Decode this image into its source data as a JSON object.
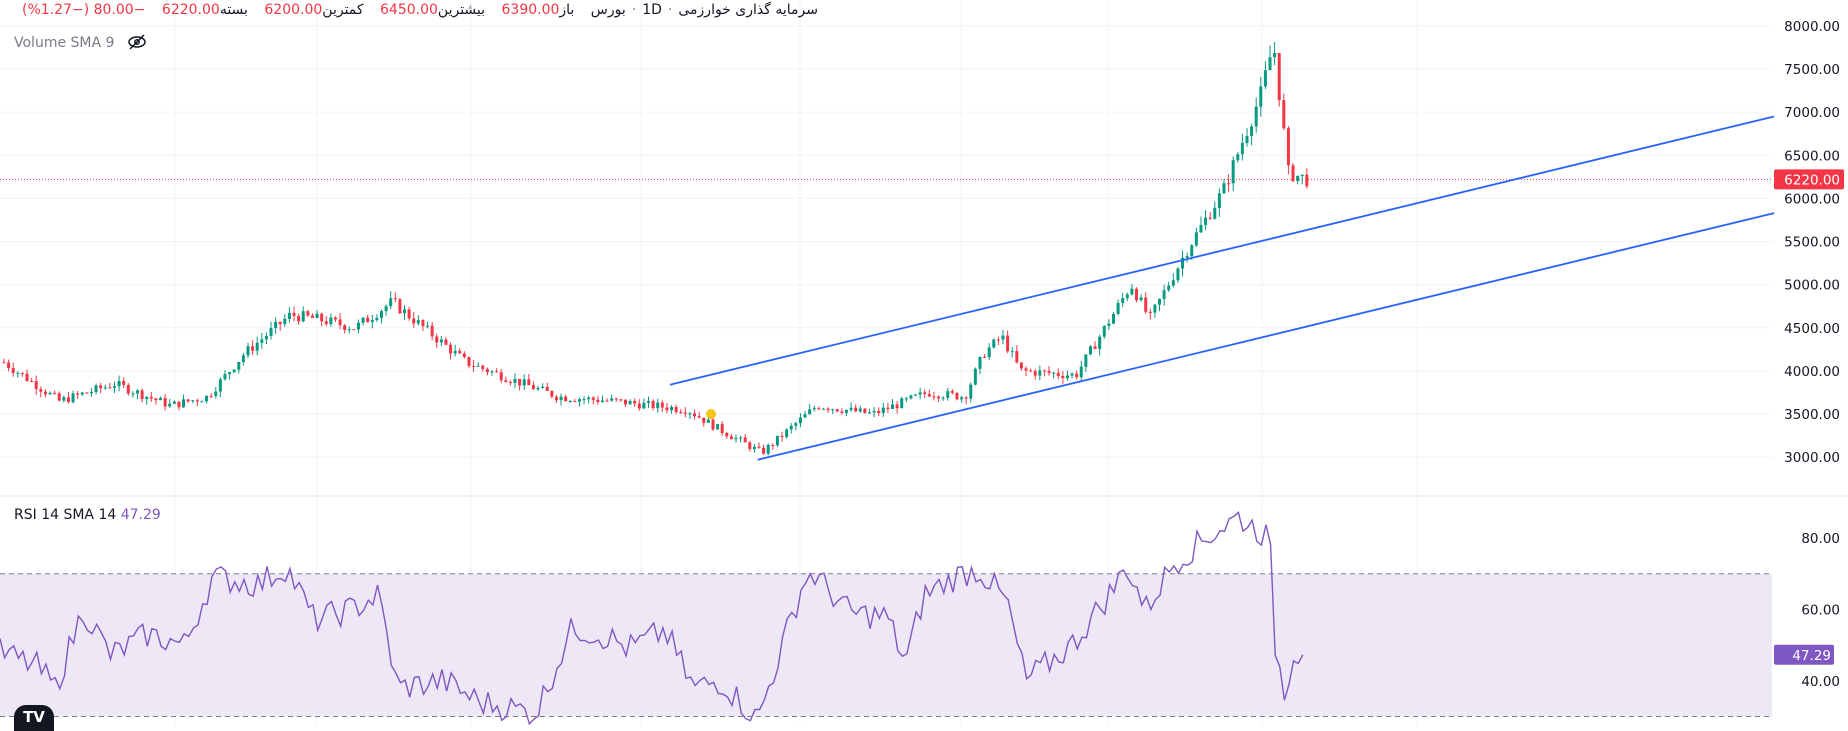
{
  "header": {
    "title": "سرمایه گذاری خوارزمی",
    "interval": "1D",
    "exchange": "بورس",
    "open_label": "باز",
    "open_value": "6390.00",
    "high_label": "بیشترین",
    "high_value": "6450.00",
    "low_label": "کمترین",
    "low_value": "6200.00",
    "close_label": "بسته",
    "close_value": "6220.00",
    "change": "−80.00 (−1.27%)"
  },
  "volume_legend": {
    "label": "Volume SMA 9",
    "icon": "eye-off-icon"
  },
  "rsi_legend": {
    "label": "RSI 14 SMA 14",
    "value": "47.29"
  },
  "colors": {
    "up": "#089981",
    "down": "#f23645",
    "trend": "#2962ff",
    "rsi": "#7e57c2",
    "band": "#ede7f6"
  },
  "chart_data": [
    {
      "type": "candlestick",
      "y_tick_labels": [
        "8000.00",
        "7500.00",
        "7000.00",
        "6500.00",
        "6000.00",
        "5500.00",
        "5000.00",
        "4500.00",
        "4000.00",
        "3500.00",
        "3000.00"
      ],
      "ylim": [
        2550,
        8300
      ],
      "last_price": 6220,
      "last_price_label": "6220.00",
      "trend_lines": [
        {
          "x": [
            0.3625,
            0.96
          ],
          "y": [
            3840,
            6950
          ]
        },
        {
          "x": [
            0.41,
            0.96
          ],
          "y": [
            2970,
            5830
          ]
        }
      ],
      "anchors": [
        [
          0,
          4100
        ],
        [
          0.03,
          3650
        ],
        [
          0.06,
          3850
        ],
        [
          0.09,
          3600
        ],
        [
          0.11,
          3700
        ],
        [
          0.13,
          4200
        ],
        [
          0.155,
          4650
        ],
        [
          0.17,
          4600
        ],
        [
          0.19,
          4500
        ],
        [
          0.21,
          4800
        ],
        [
          0.25,
          4100
        ],
        [
          0.3,
          3700
        ],
        [
          0.33,
          3650
        ],
        [
          0.37,
          3550
        ],
        [
          0.385,
          3350
        ],
        [
          0.41,
          3050
        ],
        [
          0.44,
          3600
        ],
        [
          0.47,
          3500
        ],
        [
          0.5,
          3750
        ],
        [
          0.52,
          3700
        ],
        [
          0.53,
          4200
        ],
        [
          0.54,
          4400
        ],
        [
          0.55,
          4000
        ],
        [
          0.58,
          3950
        ],
        [
          0.61,
          5000
        ],
        [
          0.62,
          4600
        ],
        [
          0.64,
          5400
        ],
        [
          0.66,
          6100
        ],
        [
          0.68,
          7200
        ],
        [
          0.687,
          7800
        ],
        [
          0.695,
          6300
        ],
        [
          0.705,
          6220
        ]
      ]
    },
    {
      "type": "line",
      "series_name": "RSI",
      "y_tick_labels": [
        "80.00",
        "60.00",
        "40.00"
      ],
      "ylim": [
        27.6,
        91.8
      ],
      "band": [
        30,
        70
      ],
      "last_value": 47.29,
      "last_value_label": "47.29",
      "anchors": [
        [
          0,
          48
        ],
        [
          0.02,
          44
        ],
        [
          0.03,
          38
        ],
        [
          0.045,
          60
        ],
        [
          0.06,
          47
        ],
        [
          0.08,
          53
        ],
        [
          0.1,
          50
        ],
        [
          0.115,
          69
        ],
        [
          0.14,
          67
        ],
        [
          0.155,
          72
        ],
        [
          0.17,
          57
        ],
        [
          0.19,
          60
        ],
        [
          0.205,
          64
        ],
        [
          0.215,
          38
        ],
        [
          0.24,
          40
        ],
        [
          0.26,
          34
        ],
        [
          0.29,
          31
        ],
        [
          0.31,
          55
        ],
        [
          0.33,
          52
        ],
        [
          0.34,
          49
        ],
        [
          0.36,
          54
        ],
        [
          0.375,
          38
        ],
        [
          0.39,
          40
        ],
        [
          0.41,
          29
        ],
        [
          0.435,
          68
        ],
        [
          0.44,
          70
        ],
        [
          0.46,
          59
        ],
        [
          0.48,
          58
        ],
        [
          0.49,
          45
        ],
        [
          0.5,
          64
        ],
        [
          0.52,
          70
        ],
        [
          0.53,
          71
        ],
        [
          0.545,
          62
        ],
        [
          0.555,
          40
        ],
        [
          0.58,
          50
        ],
        [
          0.6,
          64
        ],
        [
          0.61,
          72
        ],
        [
          0.62,
          60
        ],
        [
          0.635,
          73
        ],
        [
          0.655,
          81
        ],
        [
          0.67,
          86
        ],
        [
          0.687,
          80
        ],
        [
          0.69,
          50
        ],
        [
          0.695,
          37
        ],
        [
          0.7,
          48
        ],
        [
          0.705,
          47.29
        ]
      ]
    }
  ]
}
